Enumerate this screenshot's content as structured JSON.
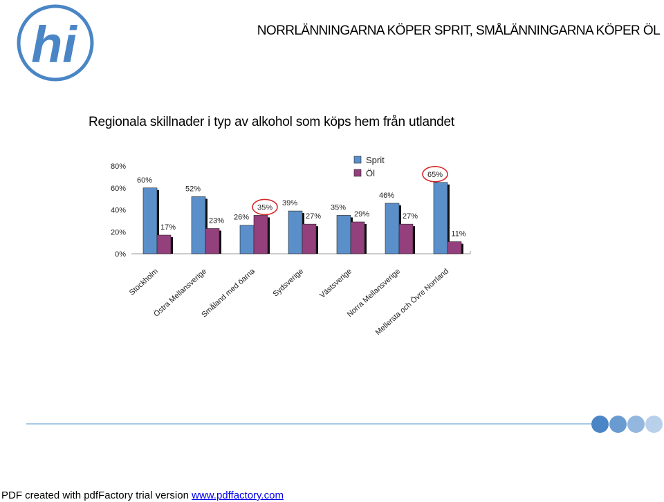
{
  "header": {
    "title": "NORRLÄNNINGARNA KÖPER SPRIT, SMÅLÄNNINGARNA KÖPER ÖL",
    "logo_text": "hi"
  },
  "colors": {
    "sprit": "#5b8fc9",
    "ol": "#93407d",
    "highlight": "#d62828",
    "logo": "#4a86c5"
  },
  "chart_data": {
    "type": "bar",
    "title": "Regionala skillnader i typ av alkohol som köps hem från utlandet",
    "categories": [
      "Stockholm",
      "Östra Mellansverige",
      "Småland med öarna",
      "Sydsverige",
      "Västsverige",
      "Norra Mellansverige",
      "Mellersta och Övre Norrland"
    ],
    "series": [
      {
        "name": "Sprit",
        "values": [
          60,
          52,
          26,
          39,
          35,
          46,
          65
        ],
        "labels": [
          "60%",
          "52%",
          "26%",
          "39%",
          "35%",
          "46%",
          "65%"
        ]
      },
      {
        "name": "Öl",
        "values": [
          17,
          23,
          35,
          27,
          29,
          27,
          11
        ],
        "labels": [
          "17%",
          "23%",
          "35%",
          "27%",
          "29%",
          "27%",
          "11%"
        ]
      }
    ],
    "yticks": [
      "0%",
      "20%",
      "40%",
      "60%",
      "80%"
    ],
    "ylim": [
      0,
      80
    ],
    "legend": "top-center",
    "highlighted_labels": [
      "35%",
      "65%"
    ]
  },
  "footer": {
    "text": "PDF created with pdfFactory trial version ",
    "link": "www.pdffactory.com",
    "dot_colors": [
      "#4a86c5",
      "#6a9bd0",
      "#93b7df",
      "#b9d0ea"
    ]
  }
}
